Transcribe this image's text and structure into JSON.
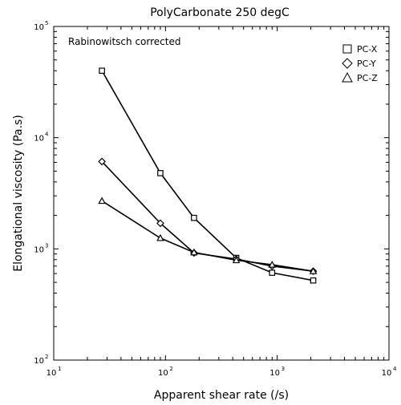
{
  "chart_data": {
    "type": "line",
    "title": "PolyCarbonate 250 degC",
    "annotation": "Rabinowitsch corrected",
    "xlabel": "Apparent shear rate (/s)",
    "ylabel": "Elongational viscosity (Pa.s)",
    "xscale": "log",
    "yscale": "log",
    "xlim": [
      10,
      10000
    ],
    "ylim": [
      100,
      100000
    ],
    "x_ticks": [
      {
        "value": 10,
        "base": "10",
        "exp": "1"
      },
      {
        "value": 100,
        "base": "10",
        "exp": "2"
      },
      {
        "value": 1000,
        "base": "10",
        "exp": "3"
      },
      {
        "value": 10000,
        "base": "10",
        "exp": "4"
      }
    ],
    "y_ticks": [
      {
        "value": 100,
        "base": "10",
        "exp": "2"
      },
      {
        "value": 1000,
        "base": "10",
        "exp": "3"
      },
      {
        "value": 10000,
        "base": "10",
        "exp": "4"
      },
      {
        "value": 100000,
        "base": "10",
        "exp": "5"
      }
    ],
    "grid": false,
    "legend_position": "top-right",
    "series": [
      {
        "name": "PC-X",
        "marker": "square",
        "x": [
          27,
          90,
          180,
          430,
          900,
          2100
        ],
        "y": [
          40000,
          4800,
          1900,
          830,
          610,
          520
        ]
      },
      {
        "name": "PC-Y",
        "marker": "diamond",
        "x": [
          27,
          90,
          180,
          430,
          900,
          2100
        ],
        "y": [
          6100,
          1700,
          920,
          810,
          700,
          630
        ]
      },
      {
        "name": "PC-Z",
        "marker": "triangle",
        "x": [
          27,
          90,
          180,
          430,
          900,
          2100
        ],
        "y": [
          2700,
          1250,
          930,
          790,
          720,
          630
        ]
      }
    ]
  }
}
